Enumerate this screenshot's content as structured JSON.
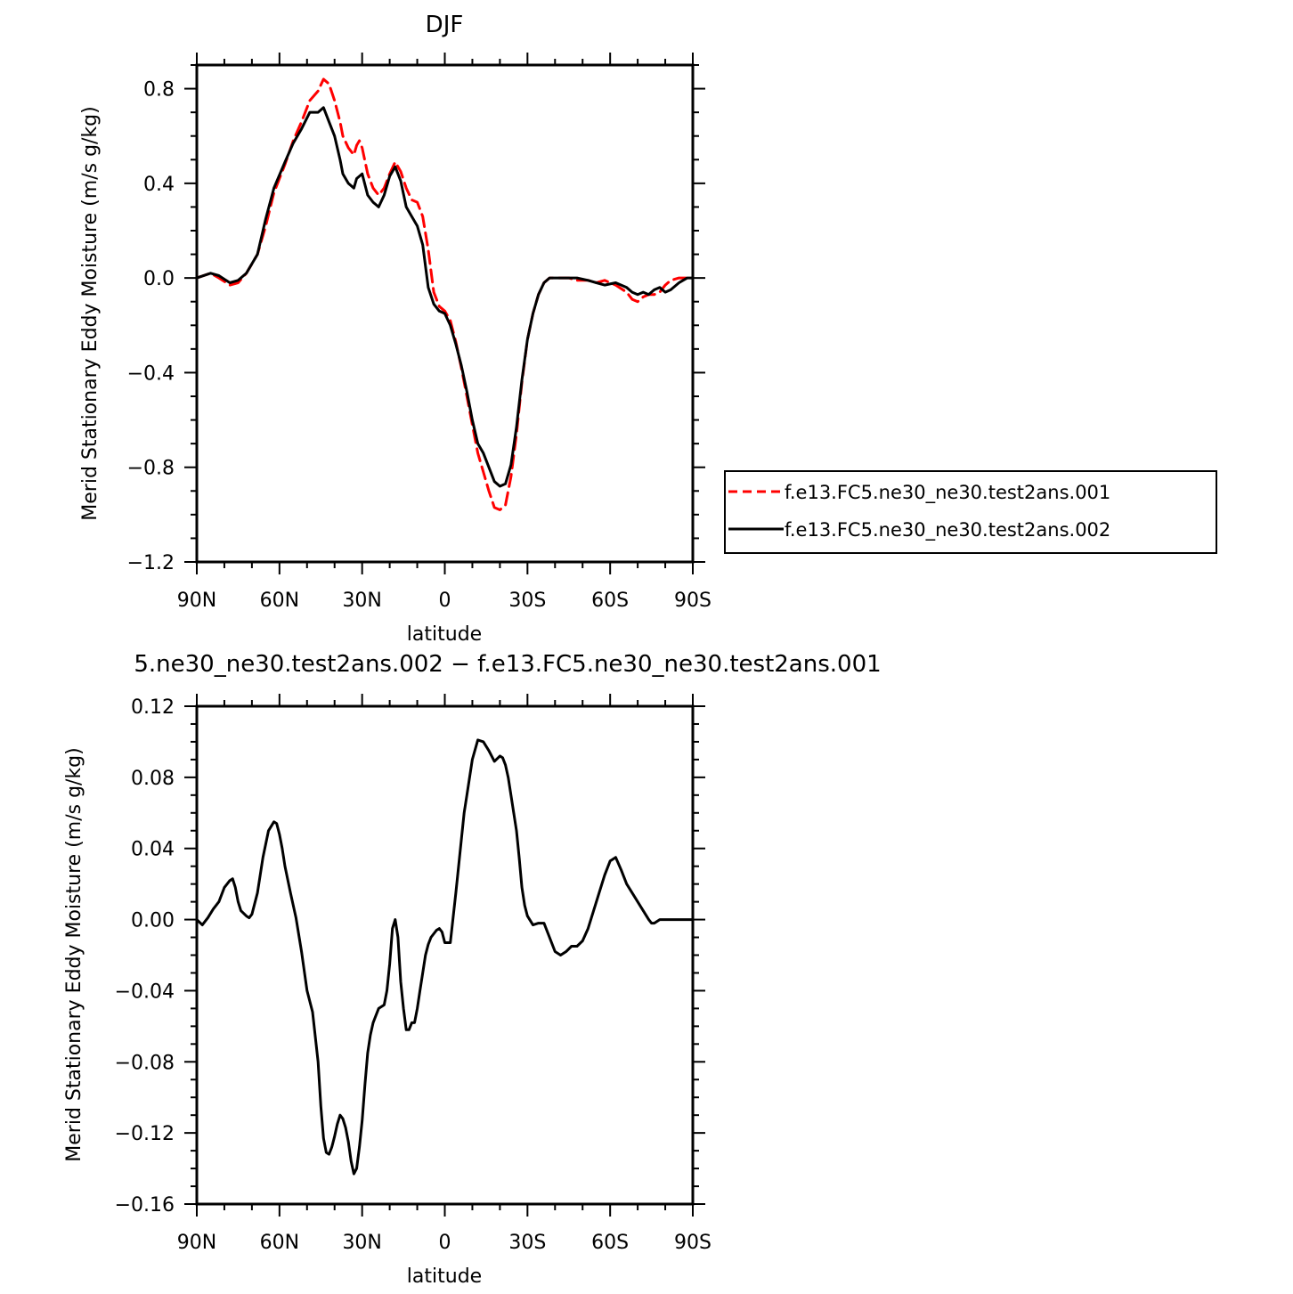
{
  "chart_data": [
    {
      "type": "line",
      "title": "DJF",
      "xlabel": "latitude",
      "ylabel": "Merid Stationary Eddy Moisture (m/s g/kg)",
      "xlim": [
        90,
        -90
      ],
      "ylim": [
        -1.2,
        0.9
      ],
      "xticks": [
        90,
        60,
        30,
        0,
        -30,
        -60,
        -90
      ],
      "xtick_labels": [
        "90N",
        "60N",
        "30N",
        "0",
        "30S",
        "60S",
        "90S"
      ],
      "yticks": [
        0.8,
        0.4,
        0.0,
        -0.4,
        -0.8,
        -1.2
      ],
      "ytick_labels": [
        "0.8",
        "0.4",
        "0.0",
        "−0.4",
        "−0.8",
        "−1.2"
      ],
      "grid": false,
      "legend_position": "right",
      "series": [
        {
          "name": "f.e13.FC5.ne30_ne30.test2ans.001",
          "color": "#ff0000",
          "style": "dashed",
          "x": [
            90,
            85,
            82,
            78,
            75,
            72,
            68,
            65,
            62,
            58,
            55,
            52,
            49,
            46,
            44,
            42,
            40,
            38,
            37,
            35,
            33,
            32,
            31,
            30,
            28,
            26,
            24,
            22,
            20,
            18,
            16,
            14,
            12,
            10,
            8,
            6,
            4,
            2,
            0,
            -2,
            -4,
            -6,
            -8,
            -10,
            -12,
            -14,
            -16,
            -18,
            -20,
            -22,
            -24,
            -26,
            -28,
            -30,
            -32,
            -34,
            -36,
            -38,
            -40,
            -42,
            -45,
            -48,
            -52,
            -55,
            -58,
            -62,
            -66,
            -68,
            -70,
            -72,
            -74,
            -76,
            -78,
            -80,
            -82,
            -85,
            -88,
            -90
          ],
          "y": [
            0.0,
            0.02,
            0.0,
            -0.03,
            -0.02,
            0.02,
            0.1,
            0.22,
            0.36,
            0.48,
            0.58,
            0.66,
            0.75,
            0.79,
            0.84,
            0.82,
            0.75,
            0.66,
            0.6,
            0.55,
            0.52,
            0.56,
            0.58,
            0.55,
            0.44,
            0.38,
            0.35,
            0.38,
            0.44,
            0.49,
            0.45,
            0.38,
            0.33,
            0.32,
            0.26,
            0.12,
            -0.06,
            -0.12,
            -0.14,
            -0.18,
            -0.27,
            -0.38,
            -0.5,
            -0.62,
            -0.74,
            -0.82,
            -0.9,
            -0.97,
            -0.98,
            -0.96,
            -0.84,
            -0.66,
            -0.44,
            -0.26,
            -0.15,
            -0.07,
            -0.02,
            0.0,
            0.0,
            0.0,
            0.0,
            -0.01,
            -0.01,
            -0.02,
            -0.01,
            -0.03,
            -0.06,
            -0.09,
            -0.1,
            -0.08,
            -0.07,
            -0.07,
            -0.06,
            -0.03,
            -0.01,
            0.0,
            0.0,
            0.0
          ]
        },
        {
          "name": "f.e13.FC5.ne30_ne30.test2ans.002",
          "color": "#000000",
          "style": "solid",
          "x": [
            90,
            85,
            82,
            78,
            75,
            72,
            68,
            65,
            62,
            58,
            55,
            52,
            49,
            46,
            44,
            42,
            40,
            38,
            37,
            35,
            33,
            32,
            31,
            30,
            28,
            26,
            24,
            22,
            20,
            18,
            16,
            14,
            12,
            10,
            8,
            6,
            4,
            2,
            0,
            -2,
            -4,
            -6,
            -8,
            -10,
            -12,
            -14,
            -16,
            -18,
            -20,
            -22,
            -24,
            -26,
            -28,
            -30,
            -32,
            -34,
            -36,
            -38,
            -40,
            -42,
            -45,
            -48,
            -52,
            -55,
            -58,
            -62,
            -66,
            -68,
            -70,
            -72,
            -74,
            -76,
            -78,
            -80,
            -82,
            -85,
            -88,
            -90
          ],
          "y": [
            0.0,
            0.02,
            0.01,
            -0.02,
            -0.01,
            0.02,
            0.1,
            0.25,
            0.38,
            0.49,
            0.57,
            0.63,
            0.7,
            0.7,
            0.72,
            0.66,
            0.6,
            0.5,
            0.44,
            0.4,
            0.38,
            0.42,
            0.43,
            0.44,
            0.35,
            0.32,
            0.3,
            0.35,
            0.43,
            0.47,
            0.41,
            0.3,
            0.26,
            0.22,
            0.14,
            -0.04,
            -0.11,
            -0.14,
            -0.15,
            -0.2,
            -0.28,
            -0.37,
            -0.48,
            -0.6,
            -0.7,
            -0.74,
            -0.8,
            -0.86,
            -0.88,
            -0.87,
            -0.79,
            -0.63,
            -0.43,
            -0.26,
            -0.15,
            -0.07,
            -0.02,
            0.0,
            0.0,
            0.0,
            0.0,
            0.0,
            -0.01,
            -0.02,
            -0.03,
            -0.02,
            -0.04,
            -0.06,
            -0.07,
            -0.06,
            -0.07,
            -0.05,
            -0.04,
            -0.06,
            -0.05,
            -0.02,
            0.0,
            0.0
          ]
        }
      ]
    },
    {
      "type": "line",
      "title": "5.ne30_ne30.test2ans.002 − f.e13.FC5.ne30_ne30.test2ans.001",
      "xlabel": "latitude",
      "ylabel": "Merid Stationary Eddy Moisture (m/s g/kg)",
      "xlim": [
        90,
        -90
      ],
      "ylim": [
        -0.16,
        0.12
      ],
      "xticks": [
        90,
        60,
        30,
        0,
        -30,
        -60,
        -90
      ],
      "xtick_labels": [
        "90N",
        "60N",
        "30N",
        "0",
        "30S",
        "60S",
        "90S"
      ],
      "yticks": [
        0.12,
        0.08,
        0.04,
        0.0,
        -0.04,
        -0.08,
        -0.12,
        -0.16
      ],
      "ytick_labels": [
        "0.12",
        "0.08",
        "0.04",
        "0.00",
        "−0.04",
        "−0.08",
        "−0.12",
        "−0.16"
      ],
      "grid": false,
      "series": [
        {
          "color": "#000000",
          "style": "solid",
          "x": [
            90,
            88,
            86,
            84,
            82,
            80,
            78,
            77,
            76,
            75,
            74,
            72,
            71,
            70,
            68,
            66,
            64,
            62,
            61,
            60,
            59,
            58,
            56,
            54,
            52,
            50,
            48,
            46,
            45,
            44,
            43,
            42,
            41,
            40,
            39,
            38,
            37,
            36,
            35,
            34,
            33,
            32,
            31,
            30,
            29,
            28,
            27,
            26,
            24,
            22,
            21,
            20,
            19,
            18,
            17,
            16,
            15,
            14,
            13,
            12,
            11,
            10,
            9,
            8,
            7,
            6,
            5,
            4,
            3,
            2,
            1,
            0,
            -2,
            -4,
            -6,
            -7,
            -8,
            -10,
            -12,
            -14,
            -16,
            -18,
            -20,
            -21,
            -22,
            -23,
            -24,
            -25,
            -26,
            -27,
            -28,
            -29,
            -30,
            -32,
            -34,
            -36,
            -38,
            -40,
            -42,
            -44,
            -46,
            -48,
            -50,
            -52,
            -54,
            -56,
            -58,
            -60,
            -62,
            -64,
            -66,
            -68,
            -70,
            -72,
            -74,
            -75,
            -76,
            -78,
            -80,
            -82,
            -84,
            -86,
            -88,
            -90
          ],
          "y": [
            0.0,
            -0.003,
            0.001,
            0.006,
            0.01,
            0.018,
            0.022,
            0.023,
            0.018,
            0.01,
            0.005,
            0.002,
            0.001,
            0.003,
            0.015,
            0.035,
            0.05,
            0.055,
            0.054,
            0.048,
            0.04,
            0.03,
            0.015,
            0.001,
            -0.018,
            -0.04,
            -0.052,
            -0.08,
            -0.105,
            -0.123,
            -0.131,
            -0.132,
            -0.128,
            -0.122,
            -0.115,
            -0.11,
            -0.112,
            -0.117,
            -0.125,
            -0.136,
            -0.143,
            -0.14,
            -0.128,
            -0.113,
            -0.093,
            -0.075,
            -0.065,
            -0.058,
            -0.05,
            -0.048,
            -0.04,
            -0.025,
            -0.005,
            0.0,
            -0.01,
            -0.035,
            -0.05,
            -0.062,
            -0.062,
            -0.058,
            -0.058,
            -0.05,
            -0.04,
            -0.03,
            -0.02,
            -0.014,
            -0.01,
            -0.008,
            -0.006,
            -0.005,
            -0.007,
            -0.013,
            -0.013,
            0.015,
            0.045,
            0.06,
            0.07,
            0.09,
            0.101,
            0.1,
            0.095,
            0.089,
            0.092,
            0.091,
            0.087,
            0.08,
            0.07,
            0.06,
            0.05,
            0.035,
            0.018,
            0.008,
            0.002,
            -0.003,
            -0.002,
            -0.002,
            -0.01,
            -0.018,
            -0.02,
            -0.018,
            -0.015,
            -0.015,
            -0.012,
            -0.005,
            0.005,
            0.015,
            0.025,
            0.033,
            0.035,
            0.028,
            0.02,
            0.015,
            0.01,
            0.005,
            0.0,
            -0.002,
            -0.002,
            0.0,
            0.0,
            0.0,
            0.0,
            0.0,
            0.0,
            0.0
          ]
        }
      ]
    }
  ]
}
